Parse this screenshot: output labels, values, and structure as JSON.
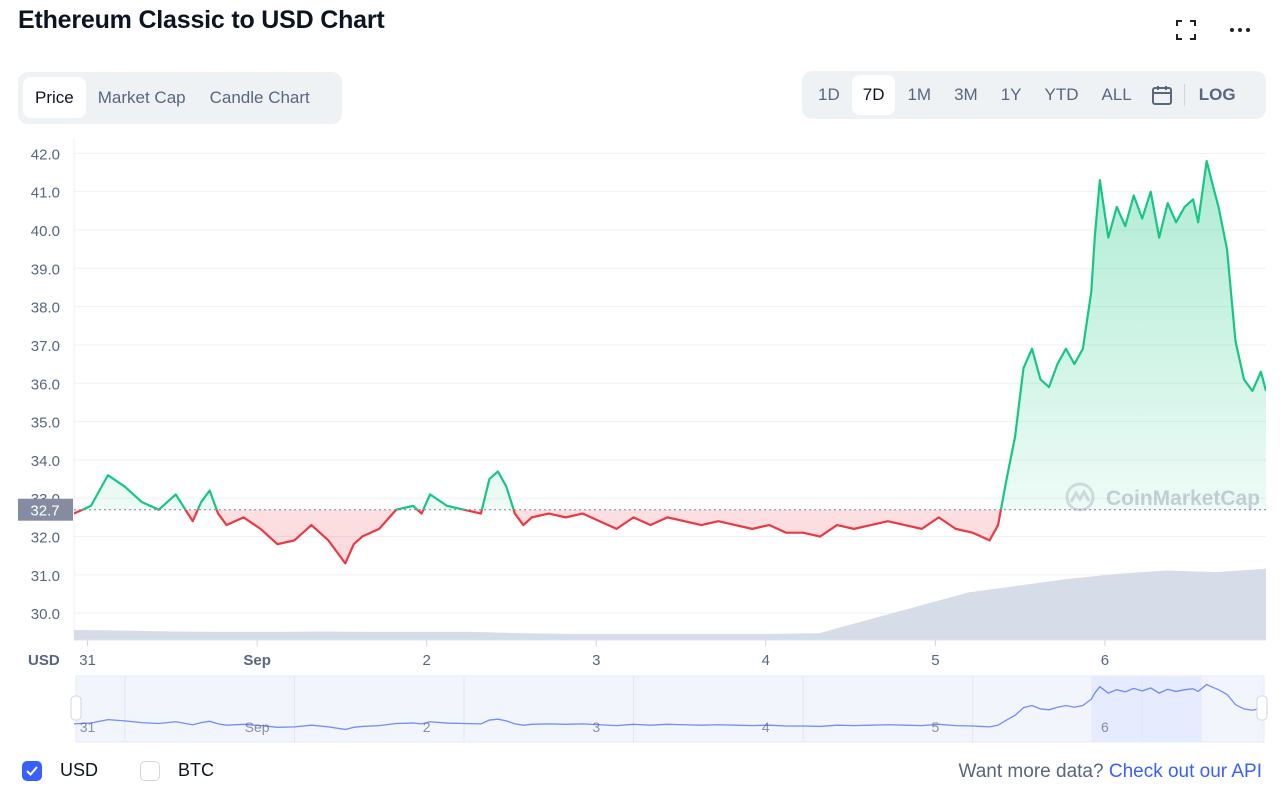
{
  "title": "Ethereum Classic to USD Chart",
  "icons": {
    "fullscreen": "fullscreen-icon",
    "more": "more-horizontal-icon",
    "calendar": "calendar-icon",
    "watermark": "coinmarketcap-logo-icon",
    "check": "check-icon"
  },
  "tabs": [
    "Price",
    "Market Cap",
    "Candle Chart"
  ],
  "active_tab": "Price",
  "ranges": [
    "1D",
    "7D",
    "1M",
    "3M",
    "1Y",
    "YTD",
    "ALL"
  ],
  "active_range": "7D",
  "log_label": "LOG",
  "currency_label": "USD",
  "watermark": "CoinMarketCap",
  "legend": {
    "usd_label": "USD",
    "btc_label": "BTC",
    "usd_checked": true,
    "btc_checked": false
  },
  "more_data": {
    "text": "Want more data?",
    "link": "Check out our API"
  },
  "colors": {
    "up": "#16c784",
    "down": "#ea3943",
    "volume": "#cfd6e4",
    "accent": "#3861fb",
    "navigator": "#e6ebfd"
  },
  "chart_data": {
    "type": "line",
    "ylabel": "USD",
    "ylim": [
      29.3,
      42.4
    ],
    "yticks": [
      "42.0",
      "41.0",
      "40.0",
      "39.0",
      "38.0",
      "37.0",
      "36.0",
      "35.0",
      "34.0",
      "33.0",
      "32.0",
      "31.0",
      "30.0"
    ],
    "baseline": 32.7,
    "baseline_label": "32.7",
    "xlim": [
      0,
      7.03
    ],
    "xticks": [
      {
        "label": "31",
        "x": 0.08
      },
      {
        "label": "Sep",
        "x": 1.08
      },
      {
        "label": "2",
        "x": 2.08
      },
      {
        "label": "3",
        "x": 3.08
      },
      {
        "label": "4",
        "x": 4.08
      },
      {
        "label": "5",
        "x": 5.08
      },
      {
        "label": "6",
        "x": 6.08
      }
    ],
    "series": [
      {
        "x": [
          0,
          0.1,
          0.2,
          0.3,
          0.4,
          0.5,
          0.6,
          0.7,
          0.75,
          0.8,
          0.85,
          0.9,
          1.0,
          1.1,
          1.15,
          1.2,
          1.3,
          1.4,
          1.5,
          1.6,
          1.65,
          1.7,
          1.8,
          1.9,
          2.0,
          2.05,
          2.1,
          2.2,
          2.3,
          2.4,
          2.45,
          2.5,
          2.55,
          2.6,
          2.65,
          2.7,
          2.8,
          2.9,
          3.0,
          3.1,
          3.2,
          3.3,
          3.4,
          3.5,
          3.6,
          3.7,
          3.8,
          3.9,
          4.0,
          4.1,
          4.2,
          4.3,
          4.4,
          4.5,
          4.6,
          4.7,
          4.8,
          4.9,
          5.0,
          5.1,
          5.2,
          5.3,
          5.35,
          5.4,
          5.45,
          5.5,
          5.55,
          5.6,
          5.65,
          5.7,
          5.75,
          5.8,
          5.85,
          5.9,
          5.95,
          6.0,
          6.02,
          6.05,
          6.1,
          6.15,
          6.2,
          6.25,
          6.3,
          6.35,
          6.4,
          6.45,
          6.5,
          6.55,
          6.6,
          6.63,
          6.68,
          6.72,
          6.75,
          6.8,
          6.85,
          6.9,
          6.95,
          7.0,
          7.03
        ],
        "y": [
          32.6,
          32.8,
          33.6,
          33.3,
          32.9,
          32.7,
          33.1,
          32.4,
          32.9,
          33.2,
          32.6,
          32.3,
          32.5,
          32.2,
          32.0,
          31.8,
          31.9,
          32.3,
          31.9,
          31.3,
          31.8,
          32.0,
          32.2,
          32.7,
          32.8,
          32.6,
          33.1,
          32.8,
          32.7,
          32.6,
          33.5,
          33.7,
          33.3,
          32.6,
          32.3,
          32.5,
          32.6,
          32.5,
          32.6,
          32.4,
          32.2,
          32.5,
          32.3,
          32.5,
          32.4,
          32.3,
          32.4,
          32.3,
          32.2,
          32.3,
          32.1,
          32.1,
          32.0,
          32.3,
          32.2,
          32.3,
          32.4,
          32.3,
          32.2,
          32.5,
          32.2,
          32.1,
          32.0,
          31.9,
          32.3,
          33.5,
          34.6,
          36.4,
          36.9,
          36.1,
          35.9,
          36.5,
          36.9,
          36.5,
          36.9,
          38.4,
          39.8,
          41.3,
          39.8,
          40.6,
          40.1,
          40.9,
          40.3,
          41.0,
          39.8,
          40.7,
          40.2,
          40.6,
          40.8,
          40.2,
          41.8,
          41.1,
          40.6,
          39.5,
          37.1,
          36.1,
          35.8,
          36.3,
          35.8
        ]
      }
    ],
    "volume": [
      0.3,
      0.28,
      0.25,
      0.24,
      0.24,
      0.25,
      0.24,
      0.24,
      0.24,
      0.2,
      0.18,
      0.18,
      0.18,
      0.18,
      0.18,
      0.2,
      0.6,
      1.0,
      1.4,
      1.6,
      1.8,
      1.95,
      2.05,
      2.0,
      2.1
    ]
  }
}
